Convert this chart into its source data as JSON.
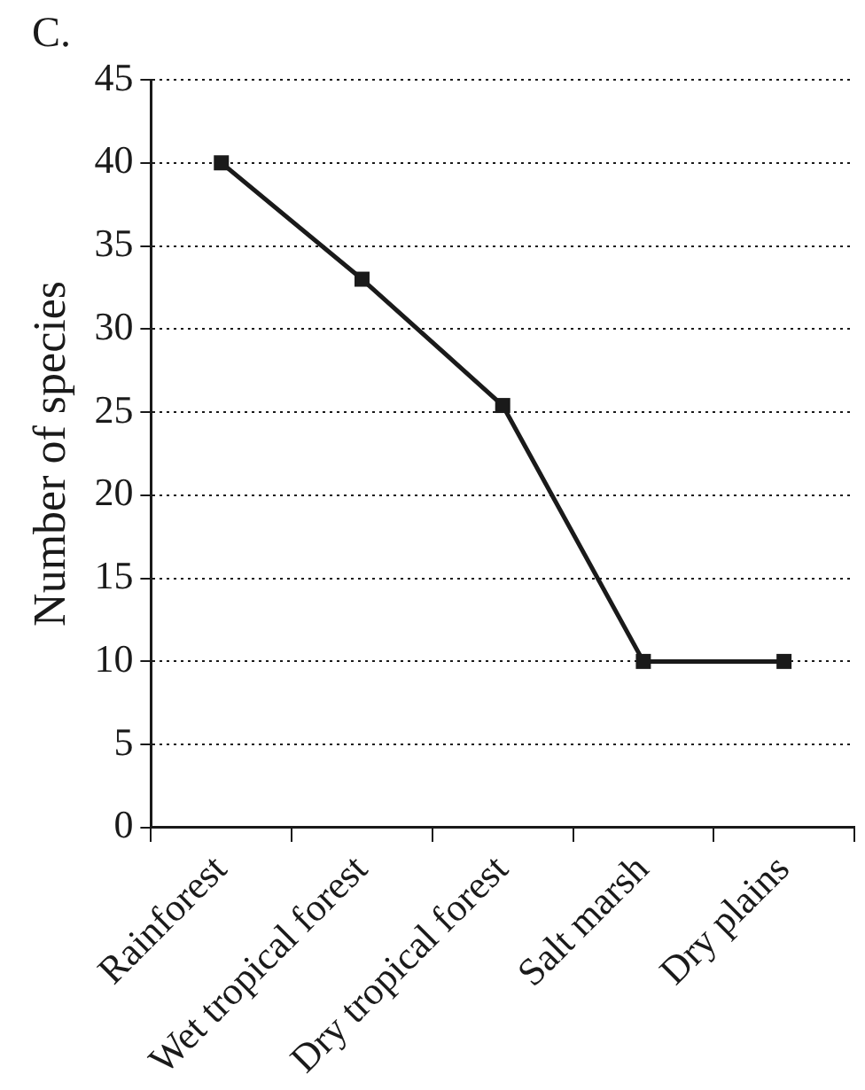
{
  "chart_data": {
    "type": "line",
    "ylabel": "Number of species",
    "annotations": [
      "C."
    ],
    "categories": [
      "Rainforest",
      "Wet tropical forest",
      "Dry tropical forest",
      "Salt marsh",
      "Dry plains"
    ],
    "series": [
      {
        "color": "#1a1a1a",
        "values": [
          40,
          33,
          25.4,
          10,
          10
        ]
      }
    ],
    "ylim": [
      0,
      45
    ],
    "yticks": [
      0,
      5,
      10,
      15,
      20,
      25,
      30,
      35,
      40,
      45
    ],
    "grid": "y",
    "legend": false,
    "marker": "square",
    "line_style": "solid"
  }
}
